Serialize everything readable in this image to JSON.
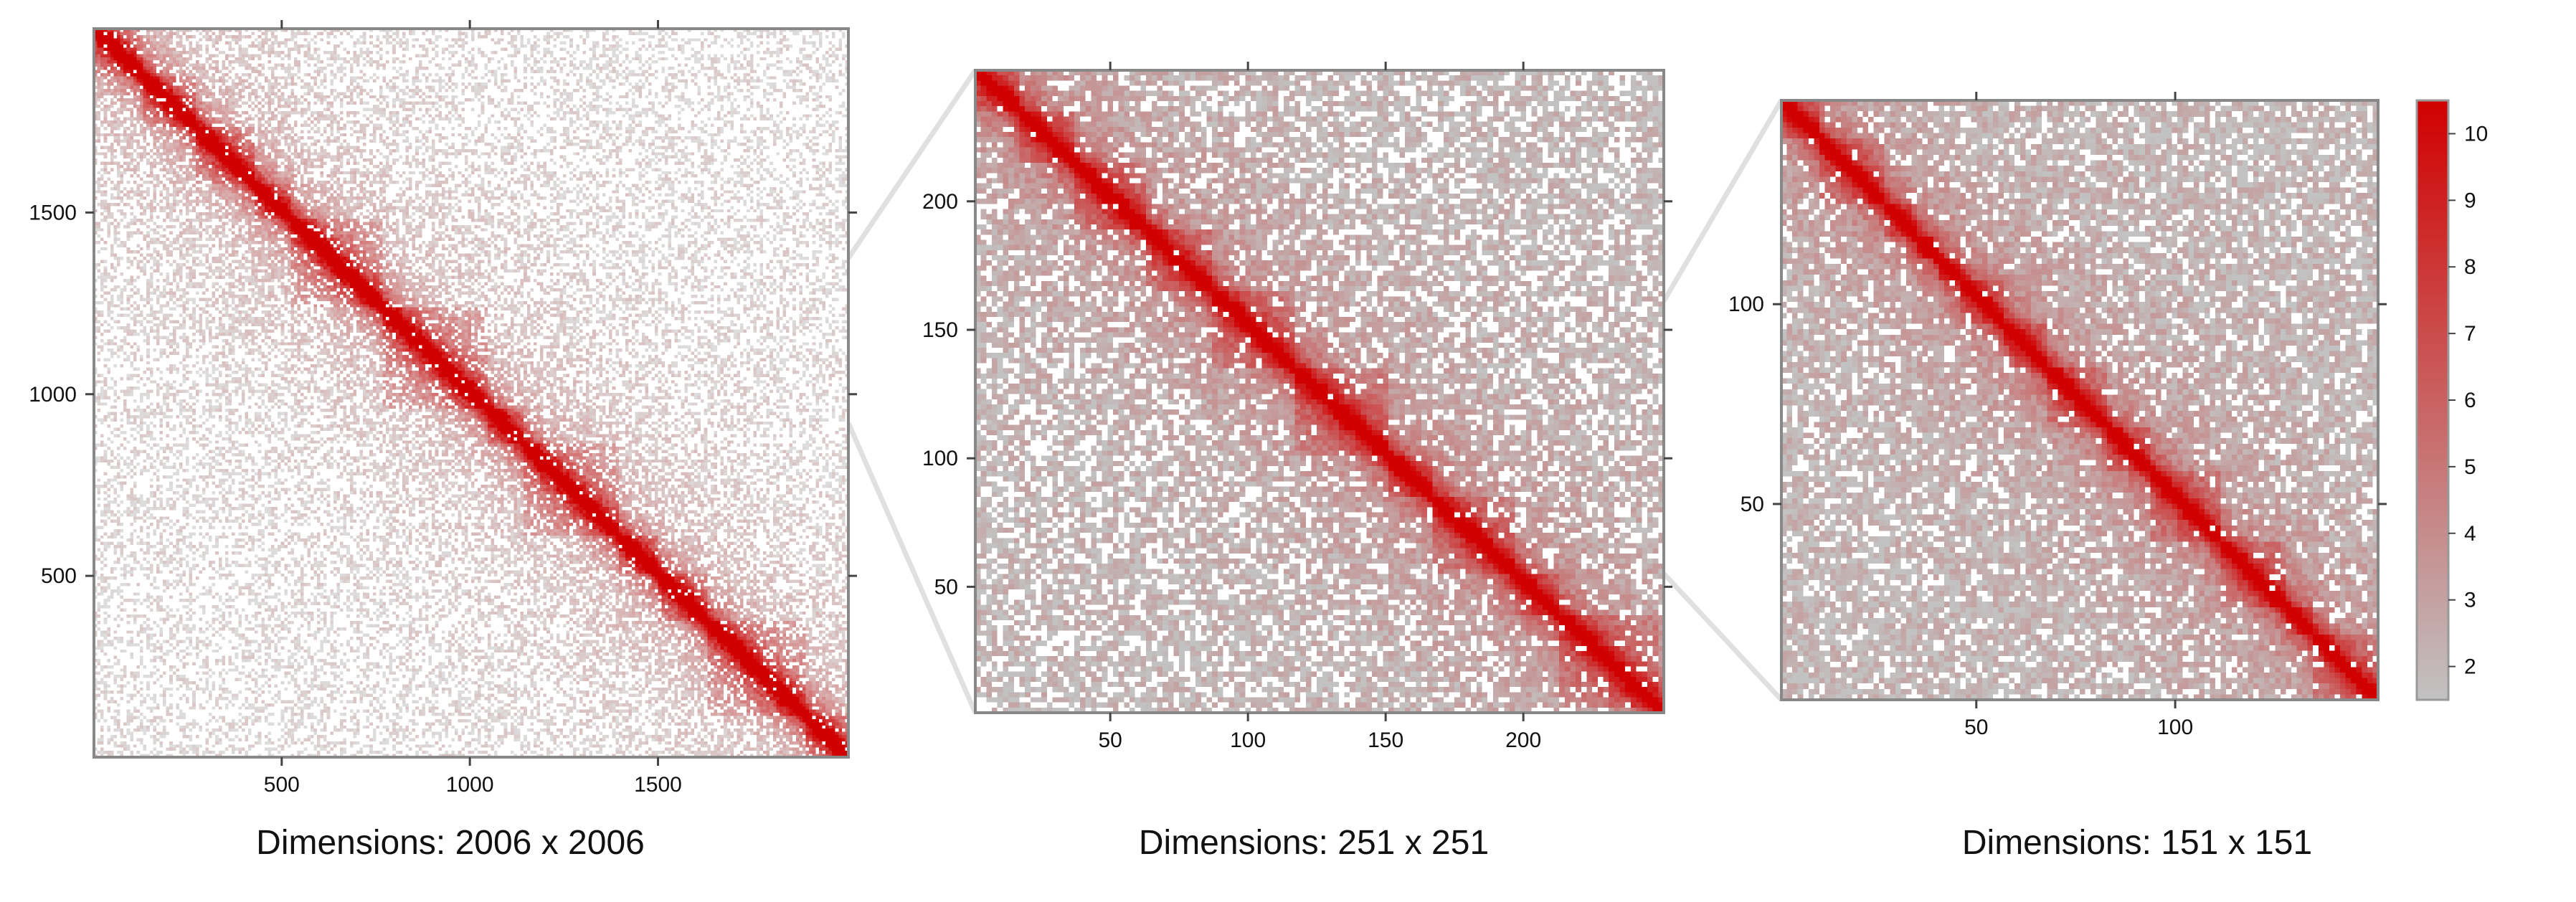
{
  "chart_data": [
    {
      "type": "heatmap",
      "caption": "Dimensions: 2006 x 2006",
      "dimension": 2006,
      "axis_range": [
        1,
        2006
      ],
      "x_ticks": [
        500,
        1000,
        1500
      ],
      "y_ticks": [
        500,
        1000,
        1500
      ],
      "diagonal_intensity": "high",
      "background_density": "sparse"
    },
    {
      "type": "heatmap",
      "caption": "Dimensions: 251 x 251",
      "dimension": 251,
      "axis_range": [
        1,
        251
      ],
      "x_ticks": [
        50,
        100,
        150,
        200
      ],
      "y_ticks": [
        50,
        100,
        150,
        200
      ],
      "diagonal_intensity": "high",
      "background_density": "medium"
    },
    {
      "type": "heatmap",
      "caption": "Dimensions: 151 x 151",
      "dimension": 151,
      "axis_range": [
        1,
        151
      ],
      "x_ticks": [
        50,
        100
      ],
      "y_ticks": [
        50,
        100
      ],
      "diagonal_intensity": "high",
      "background_density": "dense"
    }
  ],
  "color_scale": {
    "range": [
      1.5,
      10.5
    ],
    "ticks": [
      "2",
      "3",
      "4",
      "5",
      "6",
      "7",
      "8",
      "9",
      "10"
    ],
    "low_color": "#c2c2c2",
    "high_color": "#d10000"
  },
  "zoom_connector_color": "#e0e0e0",
  "frame_color": "#888888"
}
